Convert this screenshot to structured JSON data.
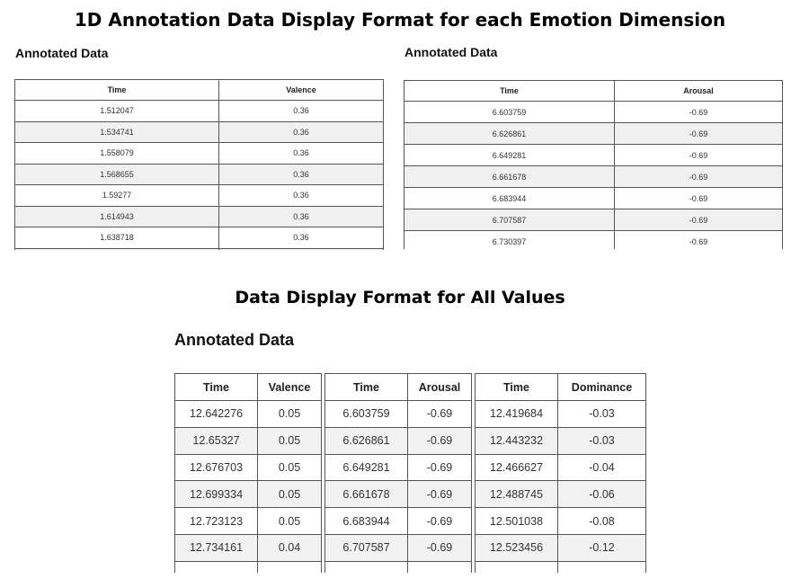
{
  "titles": {
    "top": "1D Annotation Data Display Format for each Emotion Dimension",
    "middle": "Data Display Format for All Values"
  },
  "valence_panel": {
    "heading": "Annotated Data",
    "columns": [
      "Time",
      "Valence"
    ],
    "rows": [
      [
        "1.512047",
        "0.36"
      ],
      [
        "1.534741",
        "0.36"
      ],
      [
        "1.558079",
        "0.36"
      ],
      [
        "1.568655",
        "0.36"
      ],
      [
        "1.59277",
        "0.36"
      ],
      [
        "1.614943",
        "0.36"
      ],
      [
        "1.638718",
        "0.36"
      ]
    ]
  },
  "arousal_panel": {
    "heading": "Annotated Data",
    "columns": [
      "Time",
      "Arousal"
    ],
    "rows": [
      [
        "6.603759",
        "-0.69"
      ],
      [
        "6.626861",
        "-0.69"
      ],
      [
        "6.649281",
        "-0.69"
      ],
      [
        "6.661678",
        "-0.69"
      ],
      [
        "6.683944",
        "-0.69"
      ],
      [
        "6.707587",
        "-0.69"
      ],
      [
        "6.730397",
        "-0.69"
      ]
    ]
  },
  "all_values_panel": {
    "heading": "Annotated Data",
    "tables": [
      {
        "columns": [
          "Time",
          "Valence"
        ],
        "rows": [
          [
            "12.642276",
            "0.05"
          ],
          [
            "12.65327",
            "0.05"
          ],
          [
            "12.676703",
            "0.05"
          ],
          [
            "12.699334",
            "0.05"
          ],
          [
            "12.723123",
            "0.05"
          ],
          [
            "12.734161",
            "0.04"
          ]
        ]
      },
      {
        "columns": [
          "Time",
          "Arousal"
        ],
        "rows": [
          [
            "6.603759",
            "-0.69"
          ],
          [
            "6.626861",
            "-0.69"
          ],
          [
            "6.649281",
            "-0.69"
          ],
          [
            "6.661678",
            "-0.69"
          ],
          [
            "6.683944",
            "-0.69"
          ],
          [
            "6.707587",
            "-0.69"
          ]
        ]
      },
      {
        "columns": [
          "Time",
          "Dominance"
        ],
        "rows": [
          [
            "12.419684",
            "-0.03"
          ],
          [
            "12.443232",
            "-0.03"
          ],
          [
            "12.466627",
            "-0.04"
          ],
          [
            "12.488745",
            "-0.06"
          ],
          [
            "12.501038",
            "-0.08"
          ],
          [
            "12.523456",
            "-0.12"
          ]
        ]
      }
    ]
  }
}
